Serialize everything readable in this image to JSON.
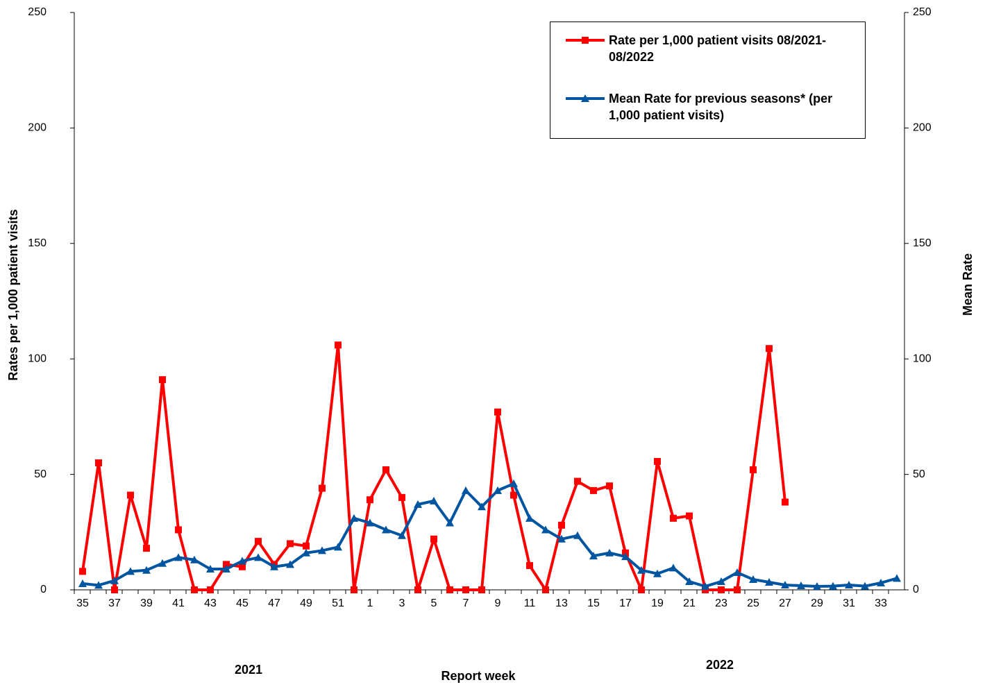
{
  "chart_data": {
    "type": "line",
    "y_label": "Rates per 1,000 patient visits",
    "y2_label": "Mean Rate",
    "x_label": "Report week",
    "annotations": [
      "2021",
      "2022"
    ],
    "categories": [
      "35",
      null,
      "37",
      null,
      "39",
      null,
      "41",
      null,
      "43",
      null,
      "45",
      null,
      "47",
      null,
      "49",
      null,
      "51",
      null,
      "1",
      null,
      "3",
      null,
      "5",
      null,
      "7",
      null,
      "9",
      null,
      "11",
      null,
      "13",
      null,
      "15",
      null,
      "17",
      null,
      "19",
      null,
      "21",
      null,
      "23",
      null,
      "25",
      null,
      "27",
      null,
      "29",
      null,
      "31",
      null,
      "33",
      null
    ],
    "series": [
      {
        "name": "Rate per 1,000 patient visits 08/2021-08/2022",
        "color": "#ff0000",
        "marker": "square",
        "values": [
          8,
          55,
          0,
          41,
          18,
          91,
          26,
          0,
          0,
          11,
          10,
          21,
          11,
          20,
          19,
          44,
          106,
          0,
          39,
          52,
          40,
          0,
          22,
          0,
          0,
          0,
          77,
          41,
          10.5,
          0,
          28,
          47,
          43,
          45,
          16,
          0,
          55.6,
          31,
          32,
          0,
          0,
          0,
          52,
          104.5,
          38,
          null,
          null,
          null,
          null,
          null,
          null,
          null
        ]
      },
      {
        "name": "Mean Rate for previous seasons* (per 1,000 patient visits)",
        "color": "#0055a0",
        "marker": "triangle",
        "axis": "y2",
        "values": [
          2.7,
          2,
          4,
          8,
          8.5,
          11.5,
          14,
          13,
          9,
          9,
          12.5,
          14,
          10,
          11,
          16,
          17,
          18.5,
          31,
          29,
          26,
          23.5,
          37,
          38.5,
          29,
          43,
          36,
          43,
          46,
          31,
          26,
          22,
          23.5,
          14.7,
          16,
          14.4,
          8.5,
          7,
          9.5,
          3.6,
          1.5,
          3.6,
          7.5,
          4.5,
          3.3,
          2.1,
          1.8,
          1.5,
          1.6,
          2.1,
          1.6,
          3,
          5
        ]
      }
    ],
    "ylim": [
      0,
      250
    ],
    "yticks": [
      0,
      50,
      100,
      150,
      200,
      250
    ],
    "y2lim": [
      0,
      250
    ],
    "y2ticks": [
      0,
      50,
      100,
      150,
      200,
      250
    ],
    "legend": "upper-right"
  }
}
